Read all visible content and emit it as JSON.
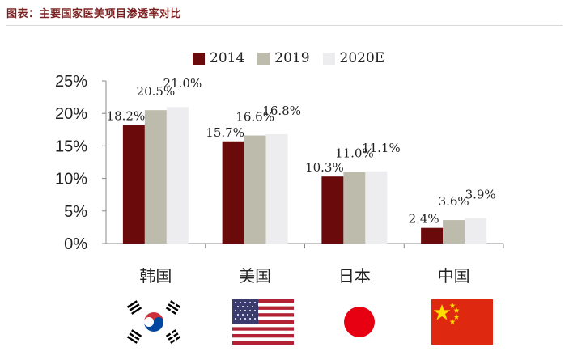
{
  "caption": "图表：主要国家医美项目渗透率对比",
  "colors": {
    "2014": "#6b0a0a",
    "2019": "#bdbcac",
    "2020E": "#ededef",
    "axis": "#888888",
    "caption": "#7b1f1f"
  },
  "chart_data": {
    "type": "bar",
    "categories": [
      "韩国",
      "美国",
      "日本",
      "中国"
    ],
    "series": [
      {
        "name": "2014",
        "values": [
          18.2,
          15.7,
          10.3,
          2.4
        ],
        "labels": [
          "18.2%",
          "15.7%",
          "10.3%",
          "2.4%"
        ]
      },
      {
        "name": "2019",
        "values": [
          20.5,
          16.6,
          11.0,
          3.6
        ],
        "labels": [
          "20.5%",
          "16.6%",
          "11.0%",
          "3.6%"
        ]
      },
      {
        "name": "2020E",
        "values": [
          21.0,
          16.8,
          11.1,
          3.9
        ],
        "labels": [
          "21.0%",
          "16.8%",
          "11.1%",
          "3.9%"
        ]
      }
    ],
    "ylim": [
      0,
      25
    ],
    "yticks": [
      "0%",
      "5%",
      "10%",
      "15%",
      "20%",
      "25%"
    ],
    "ytick_values": [
      0,
      5,
      10,
      15,
      20,
      25
    ],
    "legend_position": "top-center",
    "grid": false
  },
  "flags": [
    {
      "country": "韩国",
      "icon": "south-korea-flag-icon"
    },
    {
      "country": "美国",
      "icon": "usa-flag-icon"
    },
    {
      "country": "日本",
      "icon": "japan-flag-icon"
    },
    {
      "country": "中国",
      "icon": "china-flag-icon"
    }
  ]
}
